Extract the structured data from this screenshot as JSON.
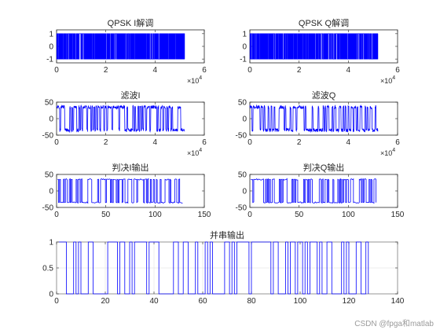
{
  "watermark": "CSDN @fpga和matlab",
  "colors": {
    "series": "#0000ff",
    "axis": "#262626",
    "grid": "#dcdcdc"
  },
  "chart_data": [
    {
      "id": "qpsk-i",
      "type": "line",
      "title": "QPSK I解调",
      "xlim": [
        0,
        6
      ],
      "ylim": [
        -1.3,
        1.3
      ],
      "xticks": [
        0,
        2,
        4,
        6
      ],
      "xtick_labels": [
        "0",
        "2",
        "4",
        "6"
      ],
      "yticks": [
        -1,
        0,
        1
      ],
      "ytick_labels": [
        "-1",
        "0",
        "1"
      ],
      "x_exponent": "×10^4",
      "grid": false,
      "series": [
        {
          "values_description": "dense QPSK symbols between -1 and 1",
          "x_range": [
            0,
            5.2
          ],
          "y_levels": [
            -1,
            1
          ]
        }
      ]
    },
    {
      "id": "qpsk-q",
      "type": "line",
      "title": "QPSK Q解调",
      "xlim": [
        0,
        6
      ],
      "ylim": [
        -1.3,
        1.3
      ],
      "xticks": [
        0,
        2,
        4,
        6
      ],
      "xtick_labels": [
        "0",
        "2",
        "4",
        "6"
      ],
      "yticks": [
        -1,
        0,
        1
      ],
      "ytick_labels": [
        "-1",
        "0",
        "1"
      ],
      "x_exponent": "×10^4",
      "grid": false,
      "series": [
        {
          "values_description": "dense QPSK symbols between -1 and 1",
          "x_range": [
            0,
            5.2
          ],
          "y_levels": [
            -1,
            1
          ]
        }
      ]
    },
    {
      "id": "filter-i",
      "type": "line",
      "title": "滤波I",
      "xlim": [
        0,
        6
      ],
      "ylim": [
        -50,
        50
      ],
      "xticks": [
        0,
        2,
        4,
        6
      ],
      "xtick_labels": [
        "0",
        "2",
        "4",
        "6"
      ],
      "yticks": [
        -50,
        0,
        50
      ],
      "ytick_labels": [
        "-50",
        "0",
        "50"
      ],
      "x_exponent": "×10^4",
      "grid": false,
      "series": [
        {
          "x_range": [
            0,
            5.2
          ],
          "y_levels": [
            -35,
            35
          ]
        }
      ]
    },
    {
      "id": "filter-q",
      "type": "line",
      "title": "滤波Q",
      "xlim": [
        0,
        6
      ],
      "ylim": [
        -50,
        50
      ],
      "xticks": [
        0,
        2,
        4,
        6
      ],
      "xtick_labels": [
        "0",
        "2",
        "4",
        "6"
      ],
      "yticks": [
        -50,
        0,
        50
      ],
      "ytick_labels": [
        "-50",
        "0",
        "50"
      ],
      "x_exponent": "×10^4",
      "grid": false,
      "series": [
        {
          "x_range": [
            0,
            5.2
          ],
          "y_levels": [
            -35,
            35
          ]
        }
      ]
    },
    {
      "id": "decide-i",
      "type": "line",
      "title": "判决I输出",
      "xlim": [
        0,
        150
      ],
      "ylim": [
        -50,
        50
      ],
      "xticks": [
        0,
        50,
        100,
        150
      ],
      "xtick_labels": [
        "0",
        "50",
        "100",
        "150"
      ],
      "yticks": [
        -50,
        0,
        50
      ],
      "ytick_labels": [
        "-50",
        "0",
        "50"
      ],
      "grid": false,
      "series": [
        {
          "x_range": [
            1,
            128
          ],
          "y_levels": [
            -35,
            35
          ]
        }
      ]
    },
    {
      "id": "decide-q",
      "type": "line",
      "title": "判决Q输出",
      "xlim": [
        0,
        150
      ],
      "ylim": [
        -50,
        50
      ],
      "xticks": [
        0,
        50,
        100,
        150
      ],
      "xtick_labels": [
        "0",
        "50",
        "100",
        "150"
      ],
      "yticks": [
        -50,
        0,
        50
      ],
      "ytick_labels": [
        "-50",
        "0",
        "50"
      ],
      "grid": false,
      "series": [
        {
          "x_range": [
            1,
            128
          ],
          "y_levels": [
            -35,
            35
          ]
        }
      ]
    },
    {
      "id": "serial-out",
      "type": "line",
      "title": "并串输出",
      "xlim": [
        0,
        140
      ],
      "ylim": [
        0,
        1
      ],
      "xticks": [
        0,
        20,
        40,
        60,
        80,
        100,
        120,
        140
      ],
      "xtick_labels": [
        "0",
        "20",
        "40",
        "60",
        "80",
        "100",
        "120",
        "140"
      ],
      "yticks": [
        0,
        0.5,
        1
      ],
      "ytick_labels": [
        "0",
        "0.5",
        "1"
      ],
      "grid": true,
      "series": [
        {
          "x_range": [
            1,
            128
          ],
          "y_levels": [
            0,
            1
          ]
        }
      ]
    }
  ]
}
